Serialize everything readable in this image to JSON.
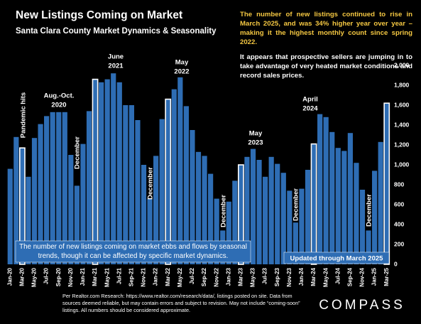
{
  "chart_data": {
    "type": "bar",
    "title": "New Listings Coming on Market",
    "subtitle": "Santa Clara County Market Dynamics & Seasonality",
    "notes": [
      "The number of new listings continued to rise in March 2025, and was 34% higher year over year – making it the highest monthly count since spring 2022.",
      "It appears that prospective sellers are jumping in to take advantage of very heated market conditions and record sales prices."
    ],
    "caption": "The number of new listings coming on market ebbs and flows by seasonal trends, though it can be affected by specific market dynamics.",
    "updated": "Updated through March 2025",
    "source": "Per Realtor.com Research:  https://www.realtor.com/research/data/, listings posted on site. Data from sources deemed reliable, but may contain errors and subject to revision. May not include “coming-soon” listings. All numbers should be considered approximate.",
    "brand": "COMPASS",
    "annotations": [
      {
        "lines": [
          "Pandemic hits"
        ],
        "vertical": true
      },
      {
        "lines": [
          "Aug.-Oct.",
          "2020"
        ]
      },
      {
        "lines": [
          "June",
          "2021"
        ]
      },
      {
        "lines": [
          "May",
          "2022"
        ]
      },
      {
        "lines": [
          "May",
          "2023"
        ]
      },
      {
        "lines": [
          "April",
          "2024"
        ]
      },
      {
        "lines": [
          "December"
        ],
        "vertical": true
      },
      {
        "lines": [
          "December"
        ],
        "vertical": true
      },
      {
        "lines": [
          "December"
        ],
        "vertical": true
      },
      {
        "lines": [
          "December"
        ],
        "vertical": true
      },
      {
        "lines": [
          "December"
        ],
        "vertical": true
      }
    ],
    "categories": [
      "Jan-20",
      null,
      "Mar-20",
      null,
      "May-20",
      null,
      "Jul-20",
      null,
      "Sep-20",
      null,
      "Nov-20",
      null,
      "Jan-21",
      null,
      "Mar-21",
      null,
      "May-21",
      null,
      "Jul-21",
      null,
      "Sep-21",
      null,
      "Nov-21",
      null,
      "Jan-22",
      null,
      "Mar-22",
      null,
      "May-22",
      null,
      "Jul-22",
      null,
      "Sep-22",
      null,
      "Nov-22",
      null,
      "Jan-23",
      null,
      "Mar-23",
      null,
      "May-23",
      null,
      "Jul-23",
      null,
      "Sep-23",
      null,
      "Nov-23",
      null,
      "Jan-24",
      null,
      "Mar-24",
      null,
      "May-24",
      null,
      "Jul-24",
      null,
      "Sep-24",
      null,
      "Nov-24",
      null,
      "Jan-25",
      null,
      "Mar-25"
    ],
    "values": [
      960,
      1280,
      1170,
      880,
      1270,
      1410,
      1490,
      1530,
      1530,
      1530,
      1100,
      790,
      1210,
      1540,
      1860,
      1830,
      1860,
      1920,
      1830,
      1600,
      1600,
      1450,
      1000,
      660,
      1090,
      1460,
      1660,
      1760,
      1880,
      1590,
      1350,
      1130,
      1090,
      910,
      660,
      340,
      630,
      840,
      1000,
      1080,
      1160,
      1050,
      880,
      1080,
      1010,
      920,
      740,
      420,
      760,
      950,
      1210,
      1510,
      1480,
      1330,
      1170,
      1140,
      1320,
      1020,
      750,
      340,
      940,
      1230,
      1620
    ],
    "color": "#2e6db4",
    "highlight_indices": [
      2,
      14,
      26,
      38,
      50,
      62
    ],
    "highlight_outline": "#ffffff",
    "ylim": [
      0,
      2000
    ],
    "yticks": [
      0,
      200,
      400,
      600,
      800,
      {
        "value": 1000,
        "label": "1,000"
      },
      {
        "value": 1200,
        "label": "1,200"
      },
      {
        "value": 1400,
        "label": "1,400"
      },
      {
        "value": 1600,
        "label": "1,600"
      },
      {
        "value": 1800,
        "label": "1,800"
      },
      {
        "value": 2000,
        "label": "2,000"
      }
    ]
  }
}
